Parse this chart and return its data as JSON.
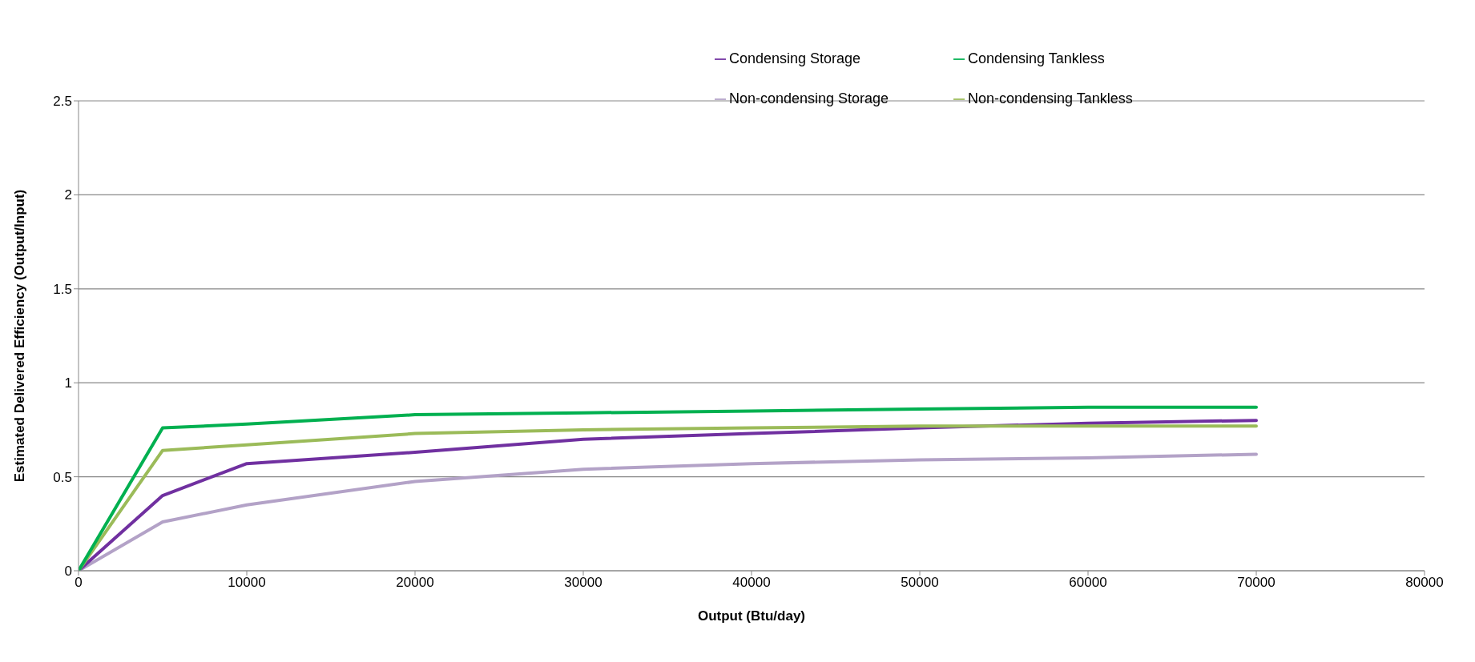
{
  "chart_data": {
    "type": "line",
    "xlabel": "Output (Btu/day)",
    "ylabel": "Estimated Delivered Efficiency (Output/Input)",
    "x": [
      0,
      5000,
      10000,
      20000,
      30000,
      40000,
      50000,
      60000,
      70000
    ],
    "series": [
      {
        "name": "Non-condensing Storage",
        "color": "#b3a2c7",
        "values": [
          0,
          0.26,
          0.35,
          0.475,
          0.54,
          0.57,
          0.59,
          0.6,
          0.62
        ]
      },
      {
        "name": "Condensing Storage",
        "color": "#7030a0",
        "values": [
          0,
          0.4,
          0.57,
          0.63,
          0.7,
          0.73,
          0.76,
          0.785,
          0.8
        ]
      },
      {
        "name": "Non-condensing Tankless",
        "color": "#9bbb59",
        "values": [
          0,
          0.64,
          0.67,
          0.73,
          0.75,
          0.76,
          0.77,
          0.77,
          0.77
        ]
      },
      {
        "name": "Condensing Tankless",
        "color": "#00b050",
        "values": [
          0,
          0.76,
          0.78,
          0.83,
          0.84,
          0.85,
          0.86,
          0.87,
          0.87
        ]
      }
    ],
    "xlim": [
      0,
      80000
    ],
    "xticks": [
      0,
      10000,
      20000,
      30000,
      40000,
      50000,
      60000,
      70000,
      80000
    ],
    "ylim": [
      0,
      2.5
    ],
    "yticks": [
      0,
      0.5,
      1,
      1.5,
      2,
      2.5
    ],
    "grid": "y",
    "legend": "top right",
    "marker": "none",
    "line_style": "solid"
  }
}
